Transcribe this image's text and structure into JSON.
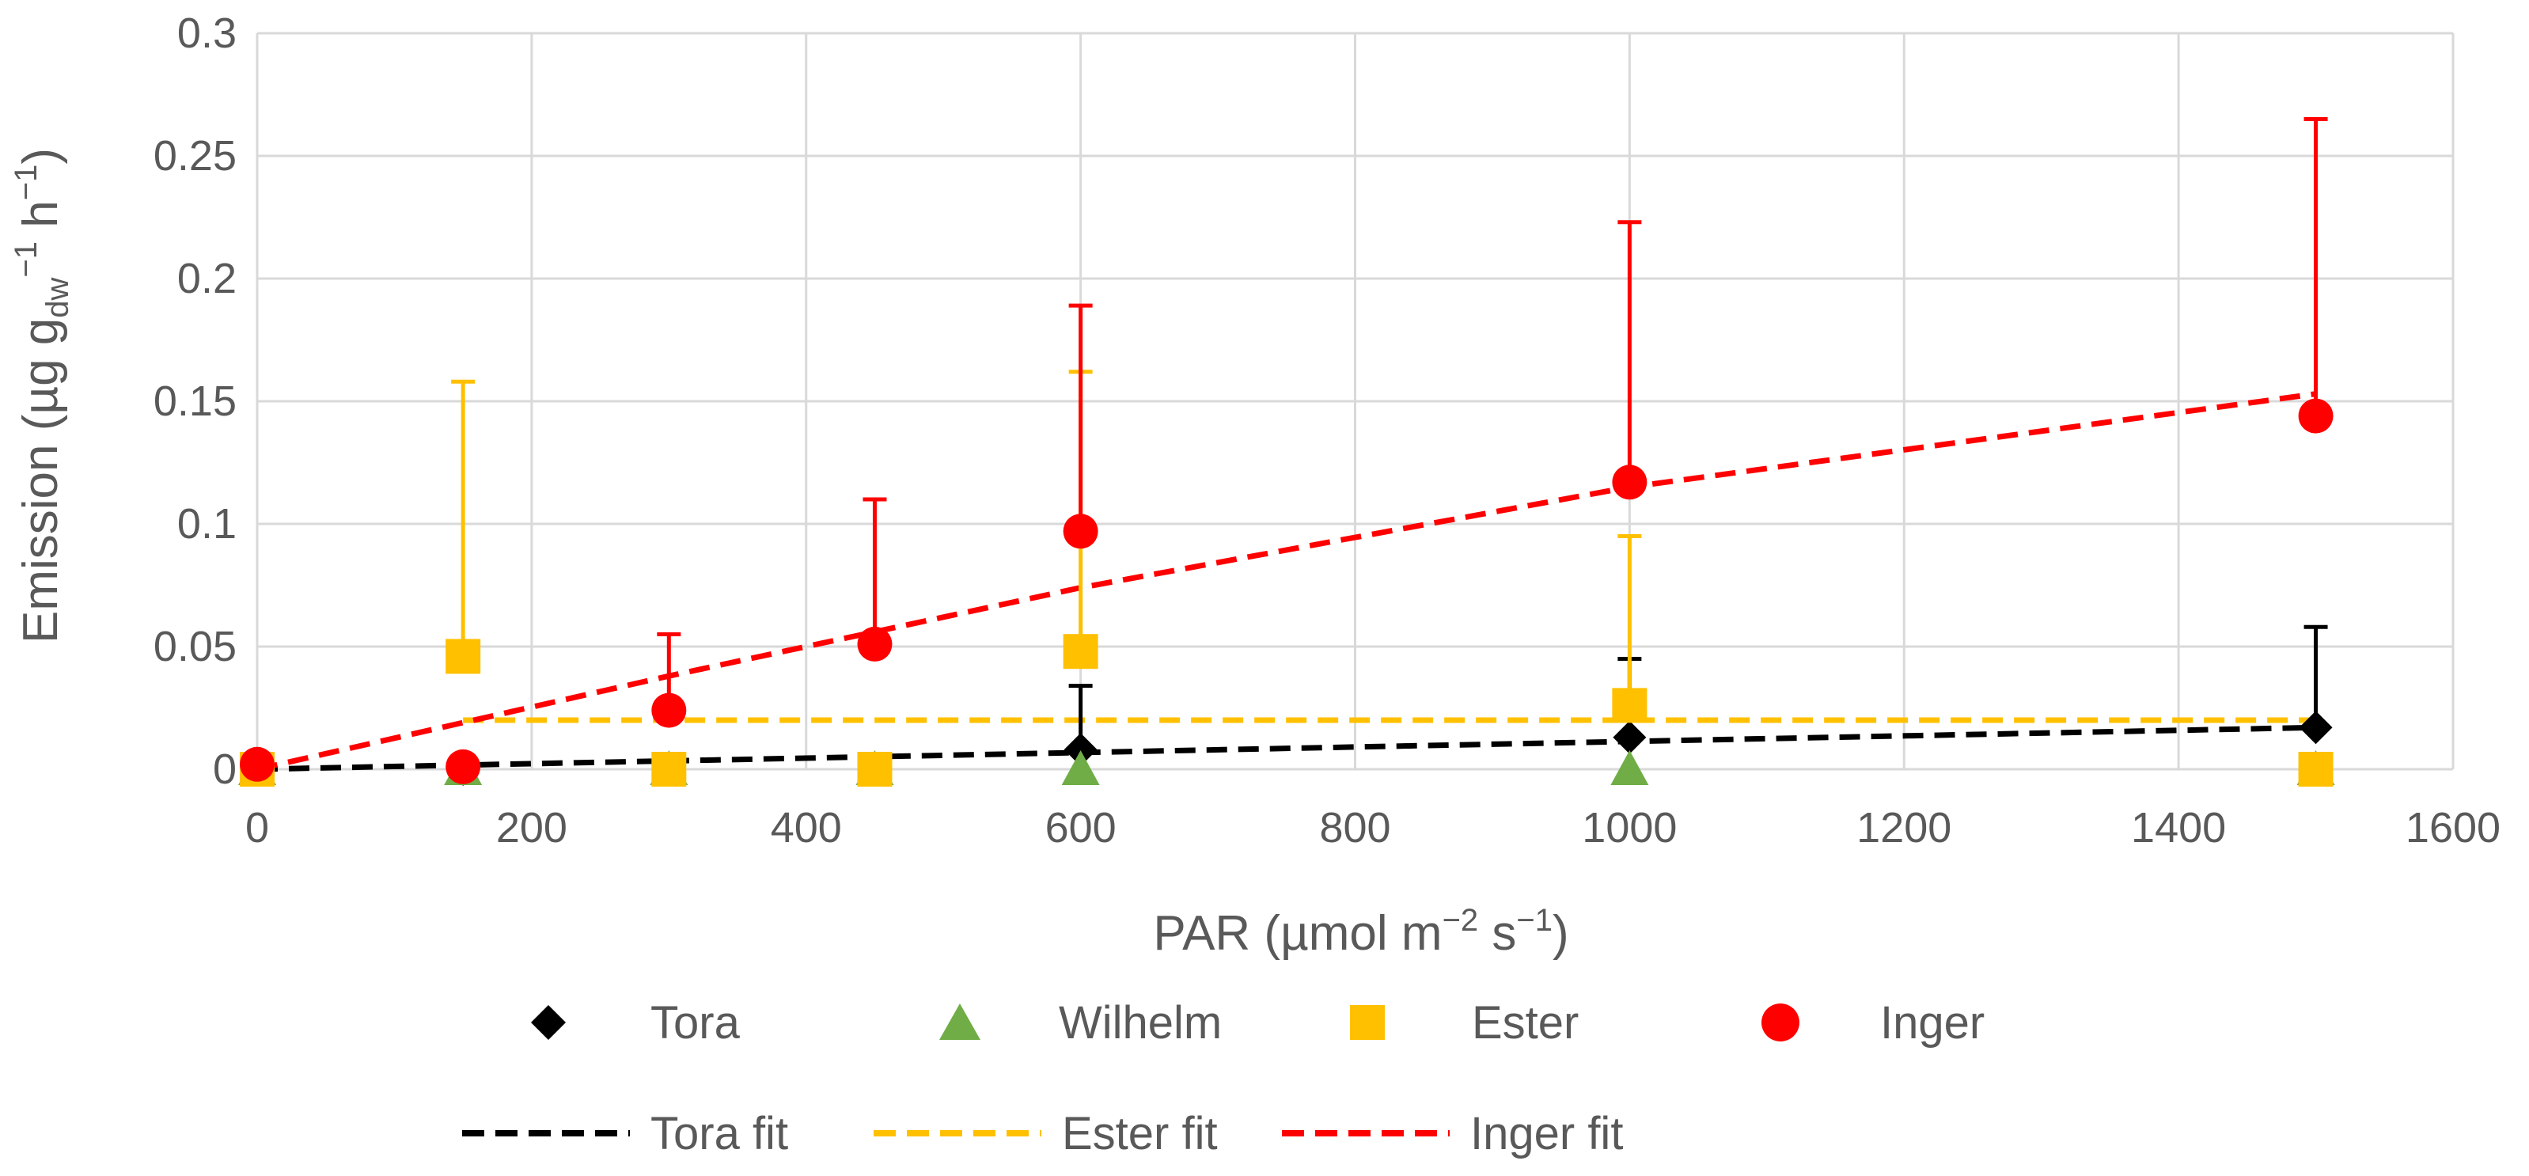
{
  "chart_data": {
    "type": "scatter",
    "title": "",
    "xlabel": {
      "text": "PAR (µmol m",
      "sup1": "−2",
      "mid": " s",
      "sup2": "−1",
      "end": ")"
    },
    "ylabel": {
      "text": "Emission (µg g",
      "sub": "dw",
      "sup1": "−1",
      "mid": " h",
      "sup2": "−1",
      "end": ")"
    },
    "xlim": [
      0,
      1600
    ],
    "ylim": [
      0,
      0.3
    ],
    "x_ticks": [
      0,
      200,
      400,
      600,
      800,
      1000,
      1200,
      1400,
      1600
    ],
    "y_ticks": [
      0,
      0.05,
      0.1,
      0.15,
      0.2,
      0.25,
      0.3
    ],
    "x_tick_labels": [
      "0",
      "200",
      "400",
      "600",
      "800",
      "1000",
      "1200",
      "1400",
      "1600"
    ],
    "y_tick_labels": [
      "0",
      "0.05",
      "0.1",
      "0.15",
      "0.2",
      "0.25",
      "0.3"
    ],
    "grid": true,
    "legend_position": "bottom",
    "series": [
      {
        "name": "Tora",
        "marker": "diamond",
        "color": "#000000",
        "x": [
          0,
          150,
          300,
          450,
          600,
          1000,
          1500
        ],
        "y": [
          0,
          0,
          0,
          0,
          0.008,
          0.013,
          0.017
        ],
        "err_upper": [
          0,
          0,
          0,
          0,
          0.034,
          0.045,
          0.058
        ]
      },
      {
        "name": "Wilhelm",
        "marker": "triangle",
        "color": "#70AD47",
        "x": [
          0,
          150,
          300,
          450,
          600,
          1000,
          1500
        ],
        "y": [
          0,
          0,
          0,
          0,
          0,
          0,
          0
        ],
        "err_upper": [
          0,
          0,
          0,
          0,
          0,
          0,
          0
        ]
      },
      {
        "name": "Ester",
        "marker": "square",
        "color": "#FFC000",
        "x": [
          0,
          150,
          300,
          450,
          600,
          1000,
          1500
        ],
        "y": [
          0,
          0.046,
          0,
          0,
          0.048,
          0.026,
          0
        ],
        "err_upper": [
          0,
          0.158,
          0,
          0,
          0.162,
          0.095,
          0
        ]
      },
      {
        "name": "Inger",
        "marker": "circle",
        "color": "#FF0000",
        "x": [
          0,
          150,
          300,
          450,
          600,
          1000,
          1500
        ],
        "y": [
          0.002,
          0.001,
          0.024,
          0.051,
          0.097,
          0.117,
          0.144
        ],
        "err_upper": [
          0.002,
          0.001,
          0.055,
          0.11,
          0.189,
          0.223,
          0.265
        ]
      }
    ],
    "fits": [
      {
        "name": "Tora fit",
        "color": "#000000",
        "x": [
          0,
          1500
        ],
        "y": [
          0,
          0.017
        ]
      },
      {
        "name": "Ester fit",
        "color": "#FFC000",
        "x": [
          150,
          1500
        ],
        "y": [
          0.02,
          0.02
        ]
      },
      {
        "name": "Inger fit",
        "color": "#FF0000",
        "x": [
          0,
          300,
          600,
          1000,
          1500
        ],
        "y": [
          0,
          0.038,
          0.074,
          0.115,
          0.153
        ]
      }
    ]
  }
}
